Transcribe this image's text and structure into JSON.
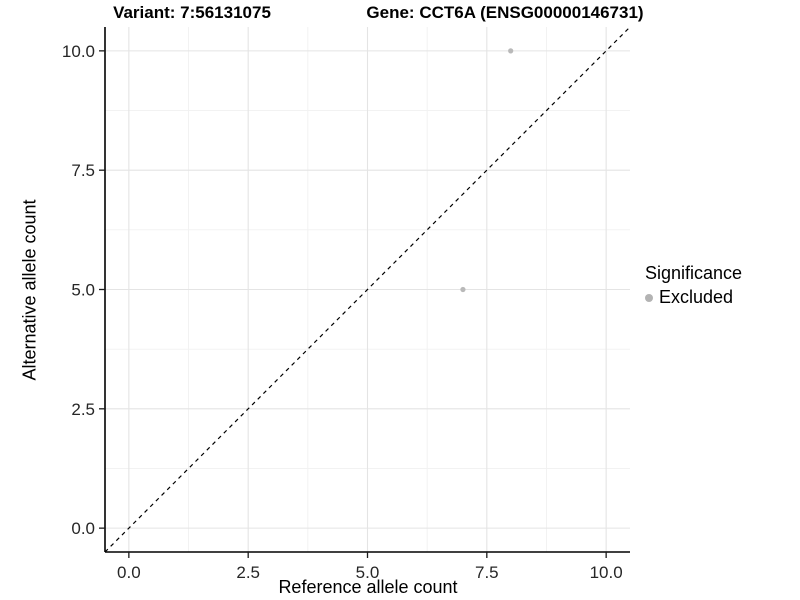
{
  "header": {
    "variant_title": "Variant: 7:56131075",
    "gene_title": "Gene: CCT6A (ENSG00000146731)"
  },
  "legend": {
    "title": "Significance",
    "items": [
      {
        "label": "Excluded",
        "marker": "circle-icon",
        "color": "#b3b3b3"
      }
    ]
  },
  "chart_data": {
    "type": "scatter",
    "title": "Variant: 7:56131075 — Gene: CCT6A (ENSG00000146731)",
    "xlabel": "Reference allele count",
    "ylabel": "Alternative allele count",
    "xlim": [
      -0.5,
      10.5
    ],
    "ylim": [
      -0.5,
      10.5
    ],
    "x_ticks": {
      "values": [
        0,
        2.5,
        5,
        7.5,
        10
      ],
      "labels": [
        "0.0",
        "2.5",
        "5.0",
        "7.5",
        "10.0"
      ]
    },
    "y_ticks": {
      "values": [
        0,
        2.5,
        5,
        7.5,
        10
      ],
      "labels": [
        "0.0",
        "2.5",
        "5.0",
        "7.5",
        "10.0"
      ]
    },
    "minor_tick_values": [
      1.25,
      3.75,
      6.25,
      8.75
    ],
    "grid": {
      "major": true,
      "minor": true
    },
    "series": [
      {
        "name": "Excluded",
        "color": "#b9b9b9",
        "points": [
          [
            7,
            5
          ],
          [
            8,
            10
          ]
        ]
      }
    ],
    "reference_line": {
      "kind": "identity",
      "from": [
        -0.5,
        -0.5
      ],
      "to": [
        10.5,
        10.5
      ],
      "style": "dashed",
      "color": "#000000"
    },
    "colors": {
      "grid_major": "#e4e4e4",
      "grid_minor": "#f1f1f1",
      "axis_line": "#000000",
      "tick_mark": "#1a1a1a",
      "tick_text": "#262626"
    },
    "legend_position": "right"
  }
}
